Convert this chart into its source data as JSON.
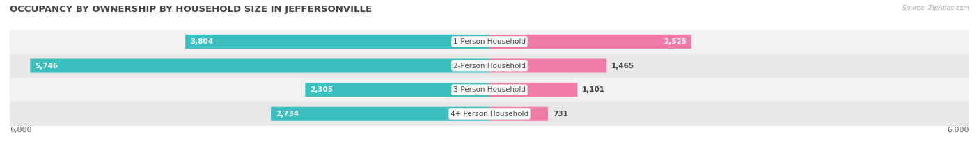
{
  "title": "OCCUPANCY BY OWNERSHIP BY HOUSEHOLD SIZE IN JEFFERSONVILLE",
  "source": "Source: ZipAtlas.com",
  "categories": [
    "1-Person Household",
    "2-Person Household",
    "3-Person Household",
    "4+ Person Household"
  ],
  "owner_values": [
    3804,
    5746,
    2305,
    2734
  ],
  "renter_values": [
    2525,
    1465,
    1101,
    731
  ],
  "owner_color": "#3BBFBF",
  "renter_color": "#F07BA8",
  "row_bg_even": "#F2F2F2",
  "row_bg_odd": "#E8E8E8",
  "axis_max": 6000,
  "title_fontsize": 9.5,
  "value_fontsize": 7.5,
  "cat_fontsize": 7.5,
  "tick_fontsize": 8,
  "background_color": "#FFFFFF",
  "bar_height": 0.58
}
